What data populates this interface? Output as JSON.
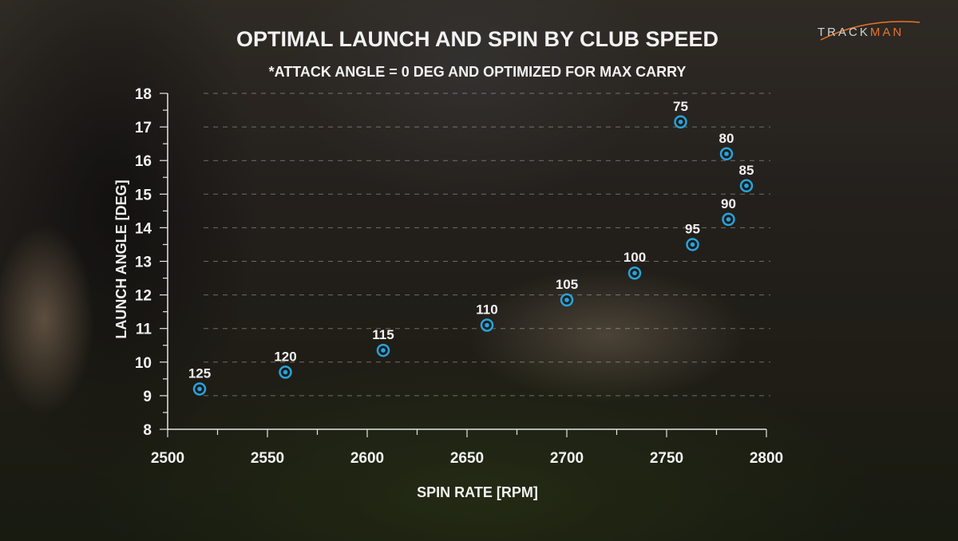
{
  "brand": {
    "part1": "TRACK",
    "part2": "MAN",
    "accent": "#e8742c"
  },
  "chart_data": {
    "type": "scatter",
    "title": "OPTIMAL LAUNCH AND SPIN BY CLUB SPEED",
    "subtitle": "*ATTACK ANGLE = 0 DEG AND OPTIMIZED FOR MAX CARRY",
    "xlabel": "SPIN RATE [RPM]",
    "ylabel": "LAUNCH ANGLE [DEG]",
    "xlim": [
      2500,
      2800
    ],
    "ylim": [
      8,
      18
    ],
    "x_ticks": [
      2500,
      2550,
      2600,
      2650,
      2700,
      2750,
      2800
    ],
    "y_ticks": [
      8,
      9,
      10,
      11,
      12,
      13,
      14,
      15,
      16,
      17,
      18
    ],
    "grid": "horizontal dashed",
    "marker_color": "#2aa3d8",
    "points": [
      {
        "label": "125",
        "x": 2516,
        "y": 9.2
      },
      {
        "label": "120",
        "x": 2559,
        "y": 9.7
      },
      {
        "label": "115",
        "x": 2608,
        "y": 10.35
      },
      {
        "label": "110",
        "x": 2660,
        "y": 11.1
      },
      {
        "label": "105",
        "x": 2700,
        "y": 11.85
      },
      {
        "label": "100",
        "x": 2734,
        "y": 12.65
      },
      {
        "label": "95",
        "x": 2763,
        "y": 13.5
      },
      {
        "label": "90",
        "x": 2781,
        "y": 14.25
      },
      {
        "label": "85",
        "x": 2790,
        "y": 15.25
      },
      {
        "label": "80",
        "x": 2780,
        "y": 16.2
      },
      {
        "label": "75",
        "x": 2757,
        "y": 17.15
      }
    ]
  }
}
